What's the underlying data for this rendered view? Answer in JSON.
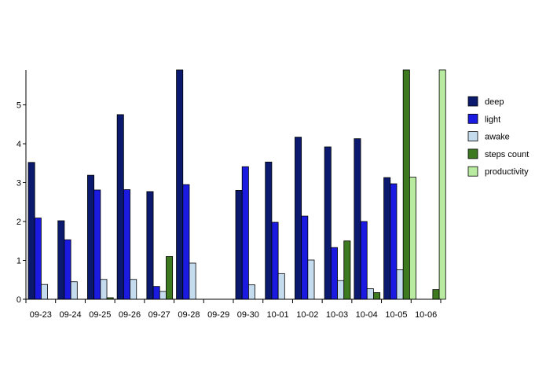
{
  "chart_data": {
    "type": "bar",
    "title": "",
    "xlabel": "",
    "ylabel": "",
    "ylim": [
      0,
      5.9
    ],
    "yticks": [
      0,
      1,
      2,
      3,
      4,
      5
    ],
    "categories": [
      "09-23",
      "09-24",
      "09-25",
      "09-26",
      "09-27",
      "09-28",
      "09-29",
      "09-30",
      "10-01",
      "10-02",
      "10-03",
      "10-04",
      "10-05",
      "10-06"
    ],
    "legend_position": "right",
    "grid": false,
    "series": [
      {
        "name": "deep",
        "color": "#0b1a6e",
        "values": [
          3.52,
          2.02,
          3.19,
          4.75,
          2.77,
          5.9,
          0,
          2.8,
          3.53,
          4.17,
          3.92,
          4.13,
          3.13,
          0
        ]
      },
      {
        "name": "light",
        "color": "#1a1ae0",
        "values": [
          2.09,
          1.53,
          2.81,
          2.82,
          0.33,
          2.95,
          0,
          3.41,
          1.98,
          2.14,
          1.33,
          2.0,
          2.97,
          0
        ]
      },
      {
        "name": "awake",
        "color": "#c5dcef",
        "values": [
          0.38,
          0.45,
          0.51,
          0.51,
          0.2,
          0.93,
          0,
          0.37,
          0.66,
          1.01,
          0.48,
          0.27,
          0.76,
          0
        ]
      },
      {
        "name": "steps count",
        "color": "#3d7a1f",
        "values": [
          0,
          0,
          0.04,
          0,
          1.1,
          0,
          0,
          0,
          0,
          0,
          1.5,
          0.17,
          5.9,
          0.25
        ]
      },
      {
        "name": "productivity",
        "color": "#b8eba0",
        "values": [
          0,
          0,
          0,
          0,
          0,
          0,
          0,
          0,
          0,
          0,
          0,
          0,
          3.14,
          5.9
        ]
      }
    ]
  }
}
